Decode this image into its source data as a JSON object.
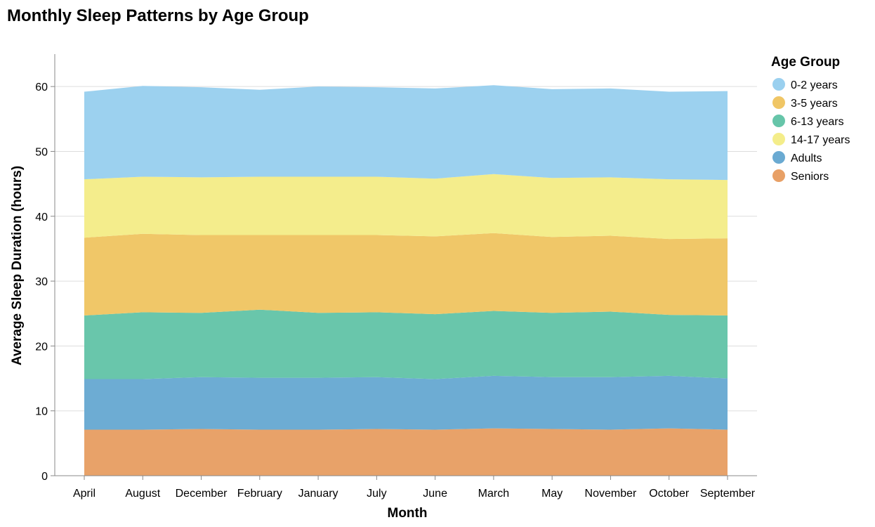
{
  "chart_data": {
    "type": "area",
    "stacked": true,
    "title": "Monthly Sleep Patterns by Age Group",
    "xlabel": "Month",
    "ylabel": "Average Sleep Duration (hours)",
    "ylim": [
      0,
      65
    ],
    "yticks": [
      0,
      10,
      20,
      30,
      40,
      50,
      60
    ],
    "grid": true,
    "legend_title": "Age Group",
    "legend_position": "right",
    "categories": [
      "April",
      "August",
      "December",
      "February",
      "January",
      "July",
      "June",
      "March",
      "May",
      "November",
      "October",
      "September"
    ],
    "series": [
      {
        "name": "Seniors",
        "color": "#e8a066",
        "values": [
          7.1,
          7.1,
          7.2,
          7.1,
          7.1,
          7.2,
          7.1,
          7.3,
          7.2,
          7.1,
          7.3,
          7.1
        ]
      },
      {
        "name": "Adults",
        "color": "#6aaad2",
        "values": [
          7.8,
          7.8,
          8.0,
          8.0,
          8.0,
          8.0,
          7.8,
          8.1,
          8.0,
          8.1,
          8.1,
          7.9
        ]
      },
      {
        "name": "6-13 years",
        "color": "#66c5a9",
        "values": [
          9.8,
          10.3,
          9.9,
          10.5,
          10.0,
          10.0,
          10.0,
          10.0,
          9.9,
          10.1,
          9.4,
          9.7
        ]
      },
      {
        "name": "3-5 years",
        "color": "#f0c665",
        "values": [
          12.0,
          12.1,
          12.0,
          11.5,
          12.0,
          11.9,
          12.0,
          12.0,
          11.7,
          11.7,
          11.7,
          11.9
        ]
      },
      {
        "name": "14-17 years",
        "color": "#f4ed8a",
        "values": [
          9.0,
          8.8,
          8.9,
          9.0,
          9.0,
          9.0,
          8.9,
          9.1,
          9.1,
          9.0,
          9.2,
          9.0
        ]
      },
      {
        "name": "0-2 years",
        "color": "#9ad0ef",
        "values": [
          13.5,
          14.0,
          13.9,
          13.4,
          13.9,
          13.8,
          13.9,
          13.7,
          13.7,
          13.7,
          13.5,
          13.7
        ]
      }
    ],
    "legend_order": [
      "0-2 years",
      "3-5 years",
      "6-13 years",
      "14-17 years",
      "Adults",
      "Seniors"
    ]
  }
}
